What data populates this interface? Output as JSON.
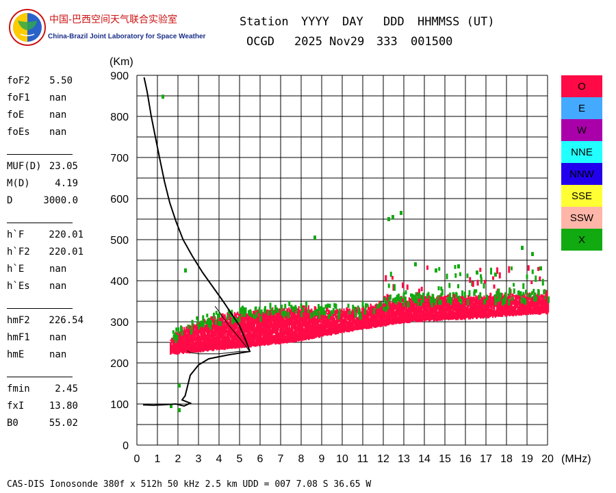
{
  "logo": {
    "cn": "中国-巴西空间天气联合实验室",
    "en": "China-Brazil Joint Laboratory for Space Weather"
  },
  "header": {
    "labels": [
      "Station",
      "YYYY",
      "DAY",
      "DDD",
      "HHMMSS (UT)"
    ],
    "values": [
      "OCGD",
      "2025 Nov29",
      "333",
      "001500"
    ]
  },
  "params": [
    {
      "name": "foF2",
      "value": "5.50"
    },
    {
      "name": "foF1",
      "value": "nan"
    },
    {
      "name": "foE",
      "value": "nan"
    },
    {
      "name": "foEs",
      "value": "nan"
    },
    {
      "name": "MUF(D)",
      "value": "23.05"
    },
    {
      "name": "M(D)",
      "value": "4.19"
    },
    {
      "name": "D",
      "value": "3000.0"
    },
    {
      "name": "h`F",
      "value": "220.01"
    },
    {
      "name": "h`F2",
      "value": "220.01"
    },
    {
      "name": "h`E",
      "value": "nan"
    },
    {
      "name": "h`Es",
      "value": "nan"
    },
    {
      "name": "hmF2",
      "value": "226.54"
    },
    {
      "name": "hmF1",
      "value": "nan"
    },
    {
      "name": "hmE",
      "value": "nan"
    },
    {
      "name": "fmin",
      "value": "2.45"
    },
    {
      "name": "fxI",
      "value": "13.80"
    },
    {
      "name": "B0",
      "value": "55.02"
    }
  ],
  "legend": [
    {
      "label": "O",
      "color": "#ff0a46"
    },
    {
      "label": "E",
      "color": "#44aaff"
    },
    {
      "label": "W",
      "color": "#aa00aa"
    },
    {
      "label": "NNE",
      "color": "#22ffff"
    },
    {
      "label": "NNW",
      "color": "#2200ee"
    },
    {
      "label": "SSE",
      "color": "#ffff33"
    },
    {
      "label": "SSW",
      "color": "#ffb6a8"
    },
    {
      "label": "X",
      "color": "#11aa11"
    }
  ],
  "footer": "CAS-DIS Ionosonde 380f x 512h 50 kHz 2.5 km UDD = 007 7.08 S 36.65 W",
  "chart_data": {
    "type": "scatter",
    "xlabel": "(MHz)",
    "ylabel": "(Km)",
    "xlim": [
      0,
      20
    ],
    "ylim": [
      0,
      900
    ],
    "x_ticks": [
      0,
      1,
      2,
      3,
      4,
      5,
      6,
      7,
      8,
      9,
      10,
      11,
      12,
      13,
      14,
      15,
      16,
      17,
      18,
      19,
      20
    ],
    "y_ticks": [
      0,
      100,
      200,
      300,
      400,
      500,
      600,
      700,
      800,
      900
    ],
    "grid": true,
    "o_trace": {
      "lower": [
        [
          1.6,
          220
        ],
        [
          2,
          220
        ],
        [
          3,
          225
        ],
        [
          4,
          230
        ],
        [
          5,
          235
        ],
        [
          6,
          240
        ],
        [
          7,
          245
        ],
        [
          8,
          252
        ],
        [
          9,
          262
        ],
        [
          10,
          272
        ],
        [
          11,
          280
        ],
        [
          12,
          288
        ],
        [
          13,
          295
        ],
        [
          14,
          300
        ],
        [
          15,
          302
        ],
        [
          16,
          305
        ],
        [
          17,
          308
        ],
        [
          18,
          312
        ],
        [
          19,
          316
        ],
        [
          20,
          318
        ]
      ],
      "upper": [
        [
          1.6,
          255
        ],
        [
          2,
          275
        ],
        [
          3,
          295
        ],
        [
          4,
          310
        ],
        [
          5,
          318
        ],
        [
          6,
          322
        ],
        [
          7,
          330
        ],
        [
          8,
          332
        ],
        [
          9,
          328
        ],
        [
          10,
          325
        ],
        [
          11,
          330
        ],
        [
          12,
          345
        ],
        [
          13,
          350
        ],
        [
          14,
          360
        ],
        [
          15,
          360
        ],
        [
          16,
          358
        ],
        [
          17,
          360
        ],
        [
          18,
          362
        ],
        [
          19,
          362
        ],
        [
          20,
          360
        ]
      ],
      "color": "#ff0a46"
    },
    "x_trace_color": "#11aa11",
    "x_scatter_points": [
      [
        1.2,
        853
      ],
      [
        12.2,
        555
      ],
      [
        12.4,
        560
      ],
      [
        12.8,
        570
      ],
      [
        8.6,
        510
      ],
      [
        18.7,
        485
      ],
      [
        19.2,
        470
      ],
      [
        19.6,
        435
      ],
      [
        2.3,
        430
      ],
      [
        14.5,
        430
      ],
      [
        15.6,
        440
      ],
      [
        16.5,
        425
      ],
      [
        17.4,
        420
      ],
      [
        13.5,
        445
      ],
      [
        2.0,
        90
      ],
      [
        2.0,
        150
      ],
      [
        1.6,
        100
      ]
    ],
    "profile_curve": [
      [
        0.35,
        895
      ],
      [
        0.5,
        860
      ],
      [
        0.7,
        800
      ],
      [
        0.9,
        750
      ],
      [
        1.1,
        700
      ],
      [
        1.35,
        640
      ],
      [
        1.6,
        590
      ],
      [
        1.9,
        545
      ],
      [
        2.25,
        500
      ],
      [
        2.7,
        460
      ],
      [
        3.2,
        420
      ],
      [
        3.7,
        385
      ],
      [
        4.2,
        350
      ],
      [
        4.6,
        320
      ],
      [
        5.0,
        290
      ],
      [
        5.3,
        255
      ],
      [
        5.5,
        228
      ],
      [
        4.5,
        220
      ],
      [
        3.5,
        210
      ],
      [
        3.0,
        195
      ],
      [
        2.6,
        170
      ],
      [
        2.45,
        140
      ],
      [
        2.35,
        120
      ],
      [
        2.2,
        110
      ],
      [
        2.6,
        102
      ],
      [
        2.3,
        95
      ],
      [
        1.9,
        100
      ],
      [
        1.2,
        98
      ],
      [
        0.8,
        97
      ],
      [
        0.3,
        98
      ]
    ],
    "virtual_height_curve": [
      [
        2.45,
        230
      ],
      [
        2.6,
        225
      ],
      [
        3.0,
        222
      ],
      [
        3.5,
        222
      ],
      [
        4.0,
        222
      ],
      [
        4.5,
        225
      ],
      [
        5.0,
        228
      ],
      [
        5.5,
        228
      ],
      [
        5.0,
        260
      ],
      [
        4.5,
        290
      ],
      [
        4.2,
        310
      ],
      [
        4.0,
        325
      ],
      [
        3.8,
        338
      ]
    ]
  }
}
